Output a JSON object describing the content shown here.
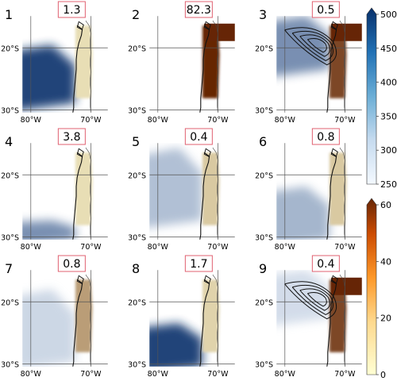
{
  "chart_data": {
    "type": "heatmap",
    "panels": [
      {
        "number": "1",
        "value": "1.3",
        "blue": {
          "band": [
            0.3,
            0.9
          ],
          "intensity": 0.95
        },
        "orange": {
          "level": 0.15
        },
        "contours": false
      },
      {
        "number": "2",
        "value": "82.3",
        "blue": null,
        "orange": {
          "level": 1.0
        },
        "contours": false
      },
      {
        "number": "3",
        "value": "0.5",
        "blue": {
          "band": [
            0.0,
            0.55
          ],
          "intensity": 0.55
        },
        "orange": {
          "level": 0.85
        },
        "contours": true
      },
      {
        "number": "4",
        "value": "3.8",
        "blue": {
          "band": [
            0.8,
            1.0
          ],
          "intensity": 0.55
        },
        "orange": {
          "level": 0.15
        },
        "contours": false
      },
      {
        "number": "5",
        "value": "0.4",
        "blue": {
          "band": [
            0.05,
            0.8
          ],
          "intensity": 0.3
        },
        "orange": {
          "level": 0.25
        },
        "contours": false
      },
      {
        "number": "6",
        "value": "0.8",
        "blue": {
          "band": [
            0.45,
            1.0
          ],
          "intensity": 0.35
        },
        "orange": {
          "level": 0.25
        },
        "contours": false
      },
      {
        "number": "7",
        "value": "0.8",
        "blue": {
          "band": [
            0.2,
            0.95
          ],
          "intensity": 0.18
        },
        "orange": {
          "level": 0.45
        },
        "contours": false
      },
      {
        "number": "8",
        "value": "1.7",
        "blue": {
          "band": [
            0.55,
            1.0
          ],
          "intensity": 0.95
        },
        "orange": {
          "level": 0.2
        },
        "contours": false
      },
      {
        "number": "9",
        "value": "0.4",
        "blue": {
          "band": [
            0.0,
            0.5
          ],
          "intensity": 0.15
        },
        "orange": {
          "level": 0.85
        },
        "contours": true
      }
    ],
    "lat_ticks": [
      "20°S",
      "30°S"
    ],
    "lon_ticks": [
      "80°W",
      "70°W"
    ],
    "colorbars": [
      {
        "name": "blue",
        "ticks": [
          "250",
          "300",
          "350",
          "400",
          "450",
          "500"
        ],
        "range": [
          250,
          500
        ],
        "colors": [
          "#f4f9ff",
          "#08306b"
        ]
      },
      {
        "name": "orange",
        "ticks": [
          "0",
          "20",
          "40",
          "60"
        ],
        "range": [
          0,
          60
        ],
        "colors": [
          "#ffffd4",
          "#662506"
        ]
      }
    ]
  }
}
